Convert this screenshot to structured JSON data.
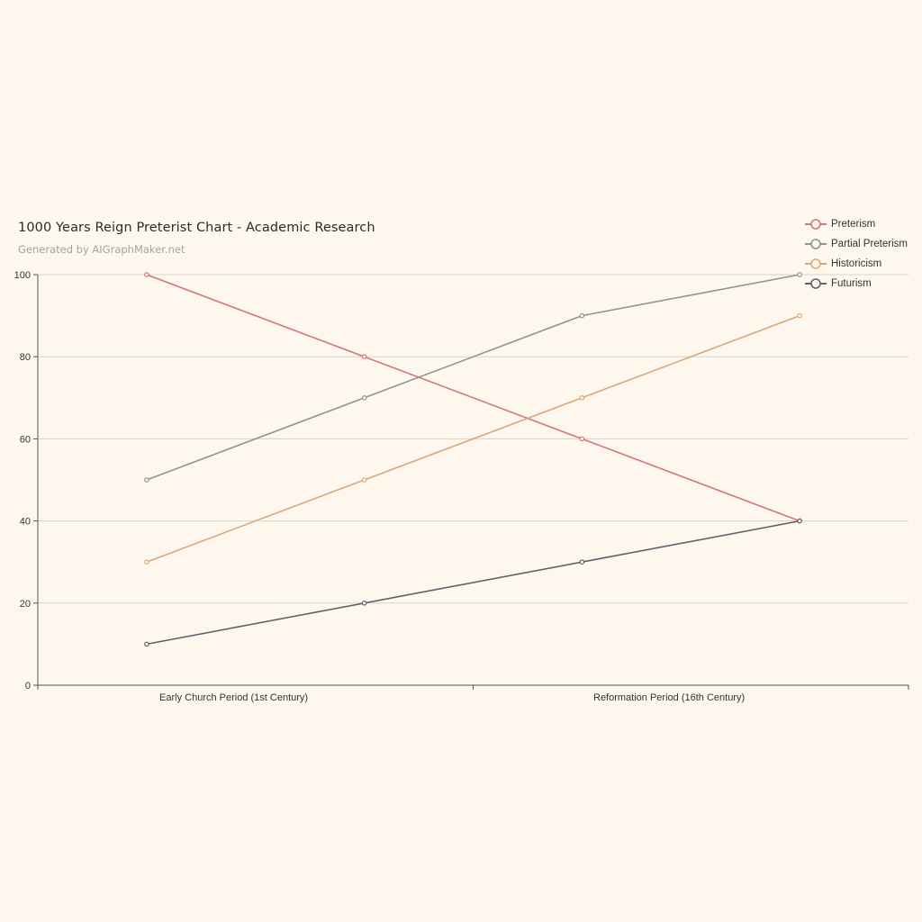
{
  "header": {
    "title": "1000 Years Reign Preterist Chart - Academic Research",
    "subtitle": "Generated by AIGraphMaker.net"
  },
  "legend": {
    "items": [
      {
        "label": "Preterism",
        "color": "#d4767a"
      },
      {
        "label": "Partial Preterism",
        "color": "#8a9a85"
      },
      {
        "label": "Historicism",
        "color": "#dba877"
      },
      {
        "label": "Futurism",
        "color": "#5f626b"
      }
    ]
  },
  "axes": {
    "y_ticks": [
      "0",
      "20",
      "40",
      "60",
      "80",
      "100"
    ],
    "x_labels_visible": [
      "Early Church Period (1st Century)",
      "Reformation Period (16th Century)"
    ]
  },
  "chart_data": {
    "type": "line",
    "title": "1000 Years Reign Preterist Chart - Academic Research",
    "subtitle": "Generated by AIGraphMaker.net",
    "categories": [
      "Early Church Period (1st Century)",
      "",
      "Reformation Period (16th Century)",
      ""
    ],
    "series": [
      {
        "name": "Preterism",
        "color": "#d4767a",
        "values": [
          100,
          80,
          60,
          40
        ]
      },
      {
        "name": "Partial Preterism",
        "color": "#8a9a85",
        "values": [
          50,
          70,
          90,
          100
        ]
      },
      {
        "name": "Historicism",
        "color": "#dba877",
        "values": [
          30,
          50,
          70,
          90
        ]
      },
      {
        "name": "Futurism",
        "color": "#5f626b",
        "values": [
          10,
          20,
          30,
          40
        ]
      }
    ],
    "xlabel": "",
    "ylabel": "",
    "ylim": [
      0,
      100
    ],
    "y_ticks": [
      0,
      20,
      40,
      60,
      80,
      100
    ],
    "grid": true,
    "legend_position": "top-right"
  }
}
